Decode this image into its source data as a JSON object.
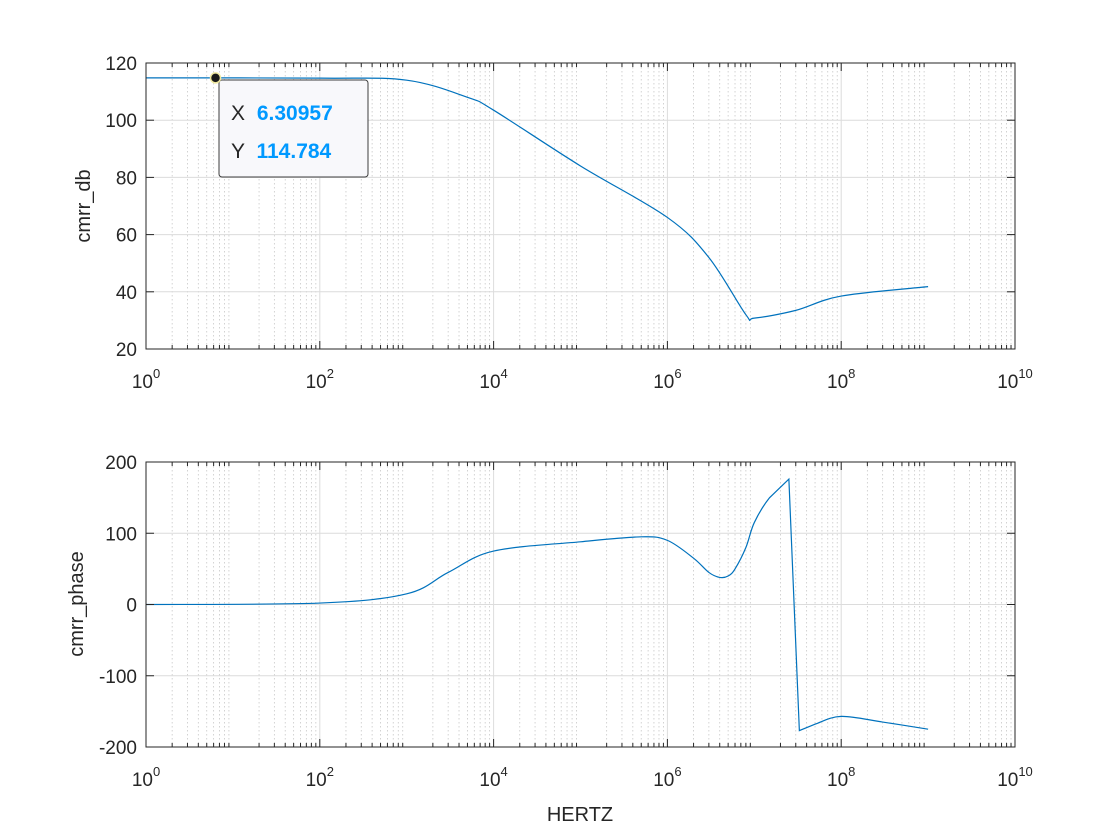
{
  "chart_data": [
    {
      "type": "line",
      "ylabel": "cmrr_db",
      "xlabel": "",
      "xscale": "log",
      "xlim": [
        1,
        10000000000
      ],
      "ylim": [
        20,
        120
      ],
      "grid": true,
      "color": "#0072BD",
      "yticks": [
        "20",
        "40",
        "60",
        "80",
        "100",
        "120"
      ],
      "xtick_exponents": [
        "0",
        "2",
        "4",
        "6",
        "8",
        "10"
      ],
      "series": [
        {
          "x": [
            1,
            100,
            1000,
            5000,
            10000,
            100000,
            1000000,
            3000000,
            8000000,
            10000000,
            30000000,
            100000000,
            1000000000
          ],
          "values": [
            114.8,
            114.7,
            114.0,
            108.0,
            103.5,
            84.0,
            66.0,
            52.0,
            32.0,
            30.8,
            33.5,
            38.5,
            41.8
          ]
        }
      ],
      "datatip": {
        "x_label": "X",
        "x_value": "6.30957",
        "x": 6.30957,
        "y_label": "Y",
        "y_value": "114.784",
        "y": 114.784
      }
    },
    {
      "type": "line",
      "ylabel": "cmrr_phase",
      "xlabel": "HERTZ",
      "xscale": "log",
      "xlim": [
        1,
        10000000000
      ],
      "ylim": [
        -200,
        200
      ],
      "grid": true,
      "color": "#0072BD",
      "yticks": [
        "-200",
        "-100",
        "0",
        "100",
        "200"
      ],
      "xtick_exponents": [
        "0",
        "2",
        "4",
        "6",
        "8",
        "10"
      ],
      "series": [
        {
          "x": [
            1,
            100,
            1000,
            3000,
            10000,
            100000,
            500000,
            1000000,
            2000000,
            3000000,
            4000000,
            5000000,
            6000000,
            8000000,
            10000000,
            15000000,
            25000000,
            33000000,
            50000000,
            100000000,
            300000000,
            1000000000
          ],
          "values": [
            0,
            2,
            15,
            45,
            75,
            88,
            95,
            90,
            65,
            45,
            38,
            40,
            50,
            80,
            115,
            150,
            176,
            -177,
            -168,
            -157,
            -165,
            -175
          ]
        }
      ]
    }
  ]
}
